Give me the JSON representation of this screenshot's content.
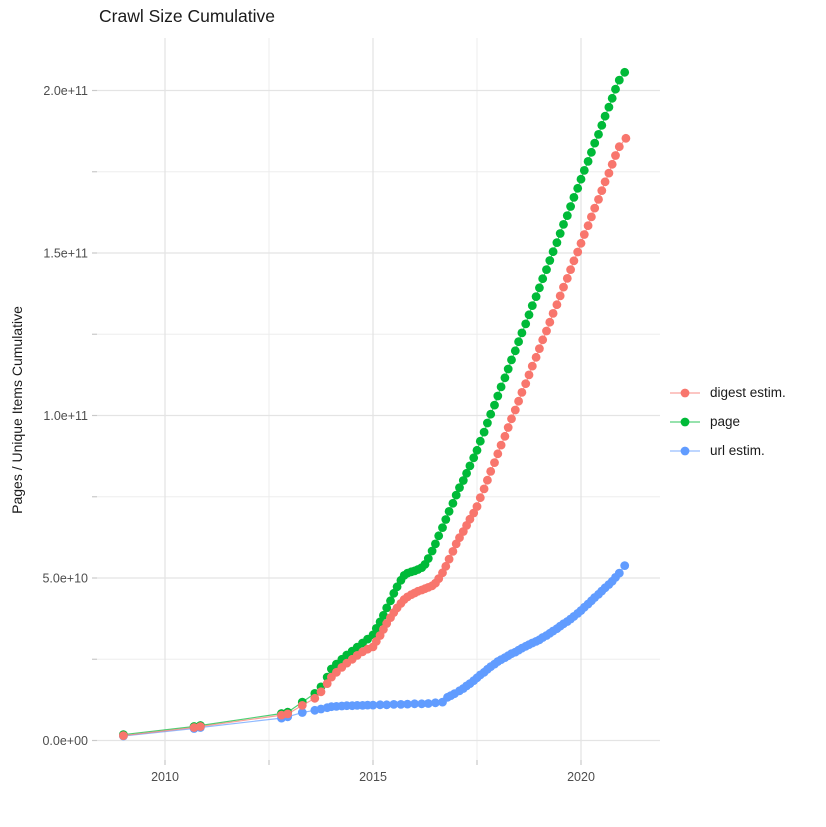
{
  "title": "Crawl Size Cumulative",
  "axes": {
    "y_title": "Pages / Unique Items Cumulative",
    "x_major_ticks": [
      {
        "year": 2010,
        "label": "2010"
      },
      {
        "year": 2015,
        "label": "2015"
      },
      {
        "year": 2020,
        "label": "2020"
      }
    ],
    "x_minor_ticks": [
      2012.5,
      2017.5
    ],
    "y_major_ticks": [
      {
        "value_e9": 0,
        "label": "0.0e+00"
      },
      {
        "value_e9": 50,
        "label": "5.0e+10"
      },
      {
        "value_e9": 100,
        "label": "1.0e+11"
      },
      {
        "value_e9": 150,
        "label": "1.5e+11"
      },
      {
        "value_e9": 200,
        "label": "2.0e+11"
      }
    ],
    "y_minor_ticks": [
      25,
      75,
      125,
      175
    ]
  },
  "legend": {
    "items": [
      {
        "id": "digest",
        "label": "digest estim.",
        "color": "#F8766D"
      },
      {
        "id": "page",
        "label": "page",
        "color": "#00BA38"
      },
      {
        "id": "url",
        "label": "url estim.",
        "color": "#619CFF"
      }
    ]
  },
  "colors": {
    "grid_major": "#E4E4E4",
    "grid_minor": "#EDEDED",
    "tick": "#C9C9C9",
    "tick_label": "#4D4D4D",
    "background": "#FFFFFF"
  },
  "chart_data": {
    "type": "line",
    "title": "Crawl Size Cumulative",
    "xlabel": "",
    "ylabel": "Pages / Unique Items Cumulative",
    "x_unit": "year (crawl date)",
    "y_unit": "items, billions (1e9)",
    "xlim": [
      2008.37,
      2021.9
    ],
    "ylim_e9": [
      -6,
      216
    ],
    "grid": true,
    "legend_position": "right",
    "marker": "point",
    "series": [
      {
        "name": "page",
        "color": "#00BA38",
        "points": [
          [
            2009.0,
            1.8
          ],
          [
            2010.7,
            4.3
          ],
          [
            2010.85,
            4.6
          ],
          [
            2012.8,
            8.3
          ],
          [
            2012.95,
            8.7
          ],
          [
            2013.3,
            11.8
          ],
          [
            2013.6,
            14.5
          ],
          [
            2013.75,
            16.5
          ],
          [
            2013.9,
            19.5
          ],
          [
            2014.0,
            22
          ],
          [
            2014.12,
            23.5
          ],
          [
            2014.25,
            25
          ],
          [
            2014.37,
            26.3
          ],
          [
            2014.5,
            27.5
          ],
          [
            2014.62,
            28.7
          ],
          [
            2014.75,
            30
          ],
          [
            2014.87,
            31.2
          ],
          [
            2015.0,
            32.5
          ],
          [
            2015.08,
            34.5
          ],
          [
            2015.17,
            36.5
          ],
          [
            2015.25,
            38.5
          ],
          [
            2015.33,
            40.8
          ],
          [
            2015.42,
            43
          ],
          [
            2015.5,
            45.3
          ],
          [
            2015.58,
            47.3
          ],
          [
            2015.67,
            49.3
          ],
          [
            2015.75,
            50.8
          ],
          [
            2015.83,
            51.5
          ],
          [
            2015.92,
            51.9
          ],
          [
            2016.0,
            52.2
          ],
          [
            2016.08,
            52.6
          ],
          [
            2016.17,
            53.2
          ],
          [
            2016.25,
            54.2
          ],
          [
            2016.33,
            56
          ],
          [
            2016.42,
            58.3
          ],
          [
            2016.5,
            60.5
          ],
          [
            2016.58,
            63
          ],
          [
            2016.67,
            65.5
          ],
          [
            2016.75,
            68
          ],
          [
            2016.83,
            70.5
          ],
          [
            2016.92,
            73
          ],
          [
            2017.0,
            75.5
          ],
          [
            2017.08,
            77.8
          ],
          [
            2017.17,
            80
          ],
          [
            2017.25,
            82.2
          ],
          [
            2017.33,
            84.5
          ],
          [
            2017.42,
            87
          ],
          [
            2017.5,
            89.3
          ],
          [
            2017.58,
            92.1
          ],
          [
            2017.67,
            94.9
          ],
          [
            2017.75,
            97.7
          ],
          [
            2017.83,
            100.4
          ],
          [
            2017.92,
            103.2
          ],
          [
            2018.0,
            106
          ],
          [
            2018.08,
            108.8
          ],
          [
            2018.17,
            111.6
          ],
          [
            2018.25,
            114.3
          ],
          [
            2018.33,
            117.1
          ],
          [
            2018.42,
            119.9
          ],
          [
            2018.5,
            122.7
          ],
          [
            2018.58,
            125.4
          ],
          [
            2018.67,
            128.2
          ],
          [
            2018.75,
            131
          ],
          [
            2018.83,
            133.8
          ],
          [
            2018.92,
            136.6
          ],
          [
            2019.0,
            139.3
          ],
          [
            2019.08,
            142.1
          ],
          [
            2019.17,
            144.9
          ],
          [
            2019.25,
            147.7
          ],
          [
            2019.33,
            150.4
          ],
          [
            2019.42,
            153.2
          ],
          [
            2019.5,
            156
          ],
          [
            2019.58,
            158.8
          ],
          [
            2019.67,
            161.5
          ],
          [
            2019.75,
            164.3
          ],
          [
            2019.83,
            167.1
          ],
          [
            2019.92,
            169.9
          ],
          [
            2020.0,
            172.7
          ],
          [
            2020.08,
            175.4
          ],
          [
            2020.17,
            178.2
          ],
          [
            2020.25,
            181
          ],
          [
            2020.33,
            183.8
          ],
          [
            2020.42,
            186.5
          ],
          [
            2020.5,
            189.3
          ],
          [
            2020.58,
            192.1
          ],
          [
            2020.67,
            194.9
          ],
          [
            2020.75,
            197.6
          ],
          [
            2020.83,
            200.4
          ],
          [
            2020.92,
            203.2
          ],
          [
            2021.05,
            205.6
          ]
        ]
      },
      {
        "name": "url estim.",
        "color": "#619CFF",
        "points": [
          [
            2009.0,
            1.4
          ],
          [
            2010.7,
            3.7
          ],
          [
            2010.85,
            4.0
          ],
          [
            2012.8,
            6.9
          ],
          [
            2012.95,
            7.3
          ],
          [
            2013.3,
            8.6
          ],
          [
            2013.6,
            9.3
          ],
          [
            2013.75,
            9.7
          ],
          [
            2013.9,
            10.1
          ],
          [
            2014.0,
            10.4
          ],
          [
            2014.12,
            10.5
          ],
          [
            2014.25,
            10.6
          ],
          [
            2014.37,
            10.7
          ],
          [
            2014.5,
            10.7
          ],
          [
            2014.62,
            10.8
          ],
          [
            2014.75,
            10.8
          ],
          [
            2014.87,
            10.9
          ],
          [
            2015.0,
            10.9
          ],
          [
            2015.17,
            11.0
          ],
          [
            2015.33,
            11.0
          ],
          [
            2015.5,
            11.1
          ],
          [
            2015.67,
            11.1
          ],
          [
            2015.83,
            11.2
          ],
          [
            2016.0,
            11.3
          ],
          [
            2016.17,
            11.3
          ],
          [
            2016.33,
            11.4
          ],
          [
            2016.5,
            11.6
          ],
          [
            2016.67,
            11.8
          ],
          [
            2016.79,
            13.3
          ],
          [
            2016.87,
            13.8
          ],
          [
            2016.96,
            14.4
          ],
          [
            2017.08,
            15.3
          ],
          [
            2017.17,
            16.0
          ],
          [
            2017.25,
            16.8
          ],
          [
            2017.33,
            17.5
          ],
          [
            2017.42,
            18.4
          ],
          [
            2017.5,
            19.3
          ],
          [
            2017.58,
            20.2
          ],
          [
            2017.67,
            21.0
          ],
          [
            2017.75,
            21.9
          ],
          [
            2017.83,
            22.7
          ],
          [
            2017.92,
            23.5
          ],
          [
            2018.0,
            24.3
          ],
          [
            2018.08,
            24.9
          ],
          [
            2018.17,
            25.5
          ],
          [
            2018.25,
            26.1
          ],
          [
            2018.33,
            26.7
          ],
          [
            2018.42,
            27.2
          ],
          [
            2018.5,
            27.8
          ],
          [
            2018.58,
            28.4
          ],
          [
            2018.67,
            29.0
          ],
          [
            2018.75,
            29.5
          ],
          [
            2018.83,
            30.0
          ],
          [
            2018.92,
            30.5
          ],
          [
            2019.0,
            31.0
          ],
          [
            2019.08,
            31.7
          ],
          [
            2019.17,
            32.3
          ],
          [
            2019.25,
            33.0
          ],
          [
            2019.33,
            33.7
          ],
          [
            2019.42,
            34.4
          ],
          [
            2019.5,
            35.2
          ],
          [
            2019.58,
            35.9
          ],
          [
            2019.67,
            36.6
          ],
          [
            2019.75,
            37.4
          ],
          [
            2019.83,
            38.2
          ],
          [
            2019.92,
            39.1
          ],
          [
            2020.0,
            40.0
          ],
          [
            2020.08,
            41.0
          ],
          [
            2020.17,
            42.0
          ],
          [
            2020.25,
            43.0
          ],
          [
            2020.33,
            44.0
          ],
          [
            2020.42,
            45.0
          ],
          [
            2020.5,
            46.0
          ],
          [
            2020.58,
            47.0
          ],
          [
            2020.67,
            48.0
          ],
          [
            2020.75,
            49.0
          ],
          [
            2020.83,
            50.2
          ],
          [
            2020.92,
            51.5
          ],
          [
            2021.05,
            53.8
          ]
        ]
      },
      {
        "name": "digest estim.",
        "color": "#F8766D",
        "points": [
          [
            2009.0,
            1.5
          ],
          [
            2010.7,
            4.0
          ],
          [
            2010.85,
            4.3
          ],
          [
            2012.8,
            7.8
          ],
          [
            2012.95,
            8.2
          ],
          [
            2013.3,
            10.8
          ],
          [
            2013.6,
            13
          ],
          [
            2013.75,
            15
          ],
          [
            2013.9,
            17.5
          ],
          [
            2014.0,
            19.5
          ],
          [
            2014.12,
            21
          ],
          [
            2014.25,
            22.5
          ],
          [
            2014.37,
            23.8
          ],
          [
            2014.5,
            25
          ],
          [
            2014.62,
            26.2
          ],
          [
            2014.75,
            27.3
          ],
          [
            2014.87,
            28.1
          ],
          [
            2015.0,
            28.8
          ],
          [
            2015.08,
            30.5
          ],
          [
            2015.17,
            32.3
          ],
          [
            2015.25,
            34.2
          ],
          [
            2015.33,
            36
          ],
          [
            2015.42,
            37.8
          ],
          [
            2015.5,
            39.4
          ],
          [
            2015.58,
            40.8
          ],
          [
            2015.67,
            42.2
          ],
          [
            2015.75,
            43.4
          ],
          [
            2015.83,
            44.2
          ],
          [
            2015.92,
            44.9
          ],
          [
            2016.0,
            45.4
          ],
          [
            2016.08,
            45.9
          ],
          [
            2016.17,
            46.3
          ],
          [
            2016.25,
            46.7
          ],
          [
            2016.33,
            47.1
          ],
          [
            2016.42,
            47.6
          ],
          [
            2016.5,
            48.4
          ],
          [
            2016.58,
            49.8
          ],
          [
            2016.67,
            51.6
          ],
          [
            2016.75,
            53.6
          ],
          [
            2016.83,
            55.8
          ],
          [
            2016.92,
            58.2
          ],
          [
            2017.0,
            60.5
          ],
          [
            2017.08,
            62.4
          ],
          [
            2017.17,
            64.3
          ],
          [
            2017.25,
            66.2
          ],
          [
            2017.33,
            68.1
          ],
          [
            2017.42,
            70
          ],
          [
            2017.5,
            72
          ],
          [
            2017.58,
            74.7
          ],
          [
            2017.67,
            77.4
          ],
          [
            2017.75,
            80.1
          ],
          [
            2017.83,
            82.8
          ],
          [
            2017.92,
            85.5
          ],
          [
            2018.0,
            88.2
          ],
          [
            2018.08,
            90.9
          ],
          [
            2018.17,
            93.6
          ],
          [
            2018.25,
            96.3
          ],
          [
            2018.33,
            99
          ],
          [
            2018.42,
            101.7
          ],
          [
            2018.5,
            104.4
          ],
          [
            2018.58,
            107.1
          ],
          [
            2018.67,
            109.8
          ],
          [
            2018.75,
            112.5
          ],
          [
            2018.83,
            115.2
          ],
          [
            2018.92,
            117.9
          ],
          [
            2019.0,
            120.6
          ],
          [
            2019.08,
            123.3
          ],
          [
            2019.17,
            126
          ],
          [
            2019.25,
            128.7
          ],
          [
            2019.33,
            131.4
          ],
          [
            2019.42,
            134.1
          ],
          [
            2019.5,
            136.8
          ],
          [
            2019.58,
            139.5
          ],
          [
            2019.67,
            142.2
          ],
          [
            2019.75,
            144.9
          ],
          [
            2019.83,
            147.6
          ],
          [
            2019.92,
            150.3
          ],
          [
            2020.0,
            153
          ],
          [
            2020.08,
            155.7
          ],
          [
            2020.17,
            158.4
          ],
          [
            2020.25,
            161.1
          ],
          [
            2020.33,
            163.8
          ],
          [
            2020.42,
            166.5
          ],
          [
            2020.5,
            169.2
          ],
          [
            2020.58,
            171.9
          ],
          [
            2020.67,
            174.6
          ],
          [
            2020.75,
            177.3
          ],
          [
            2020.83,
            180
          ],
          [
            2020.92,
            182.7
          ],
          [
            2021.08,
            185.3
          ]
        ]
      }
    ]
  }
}
